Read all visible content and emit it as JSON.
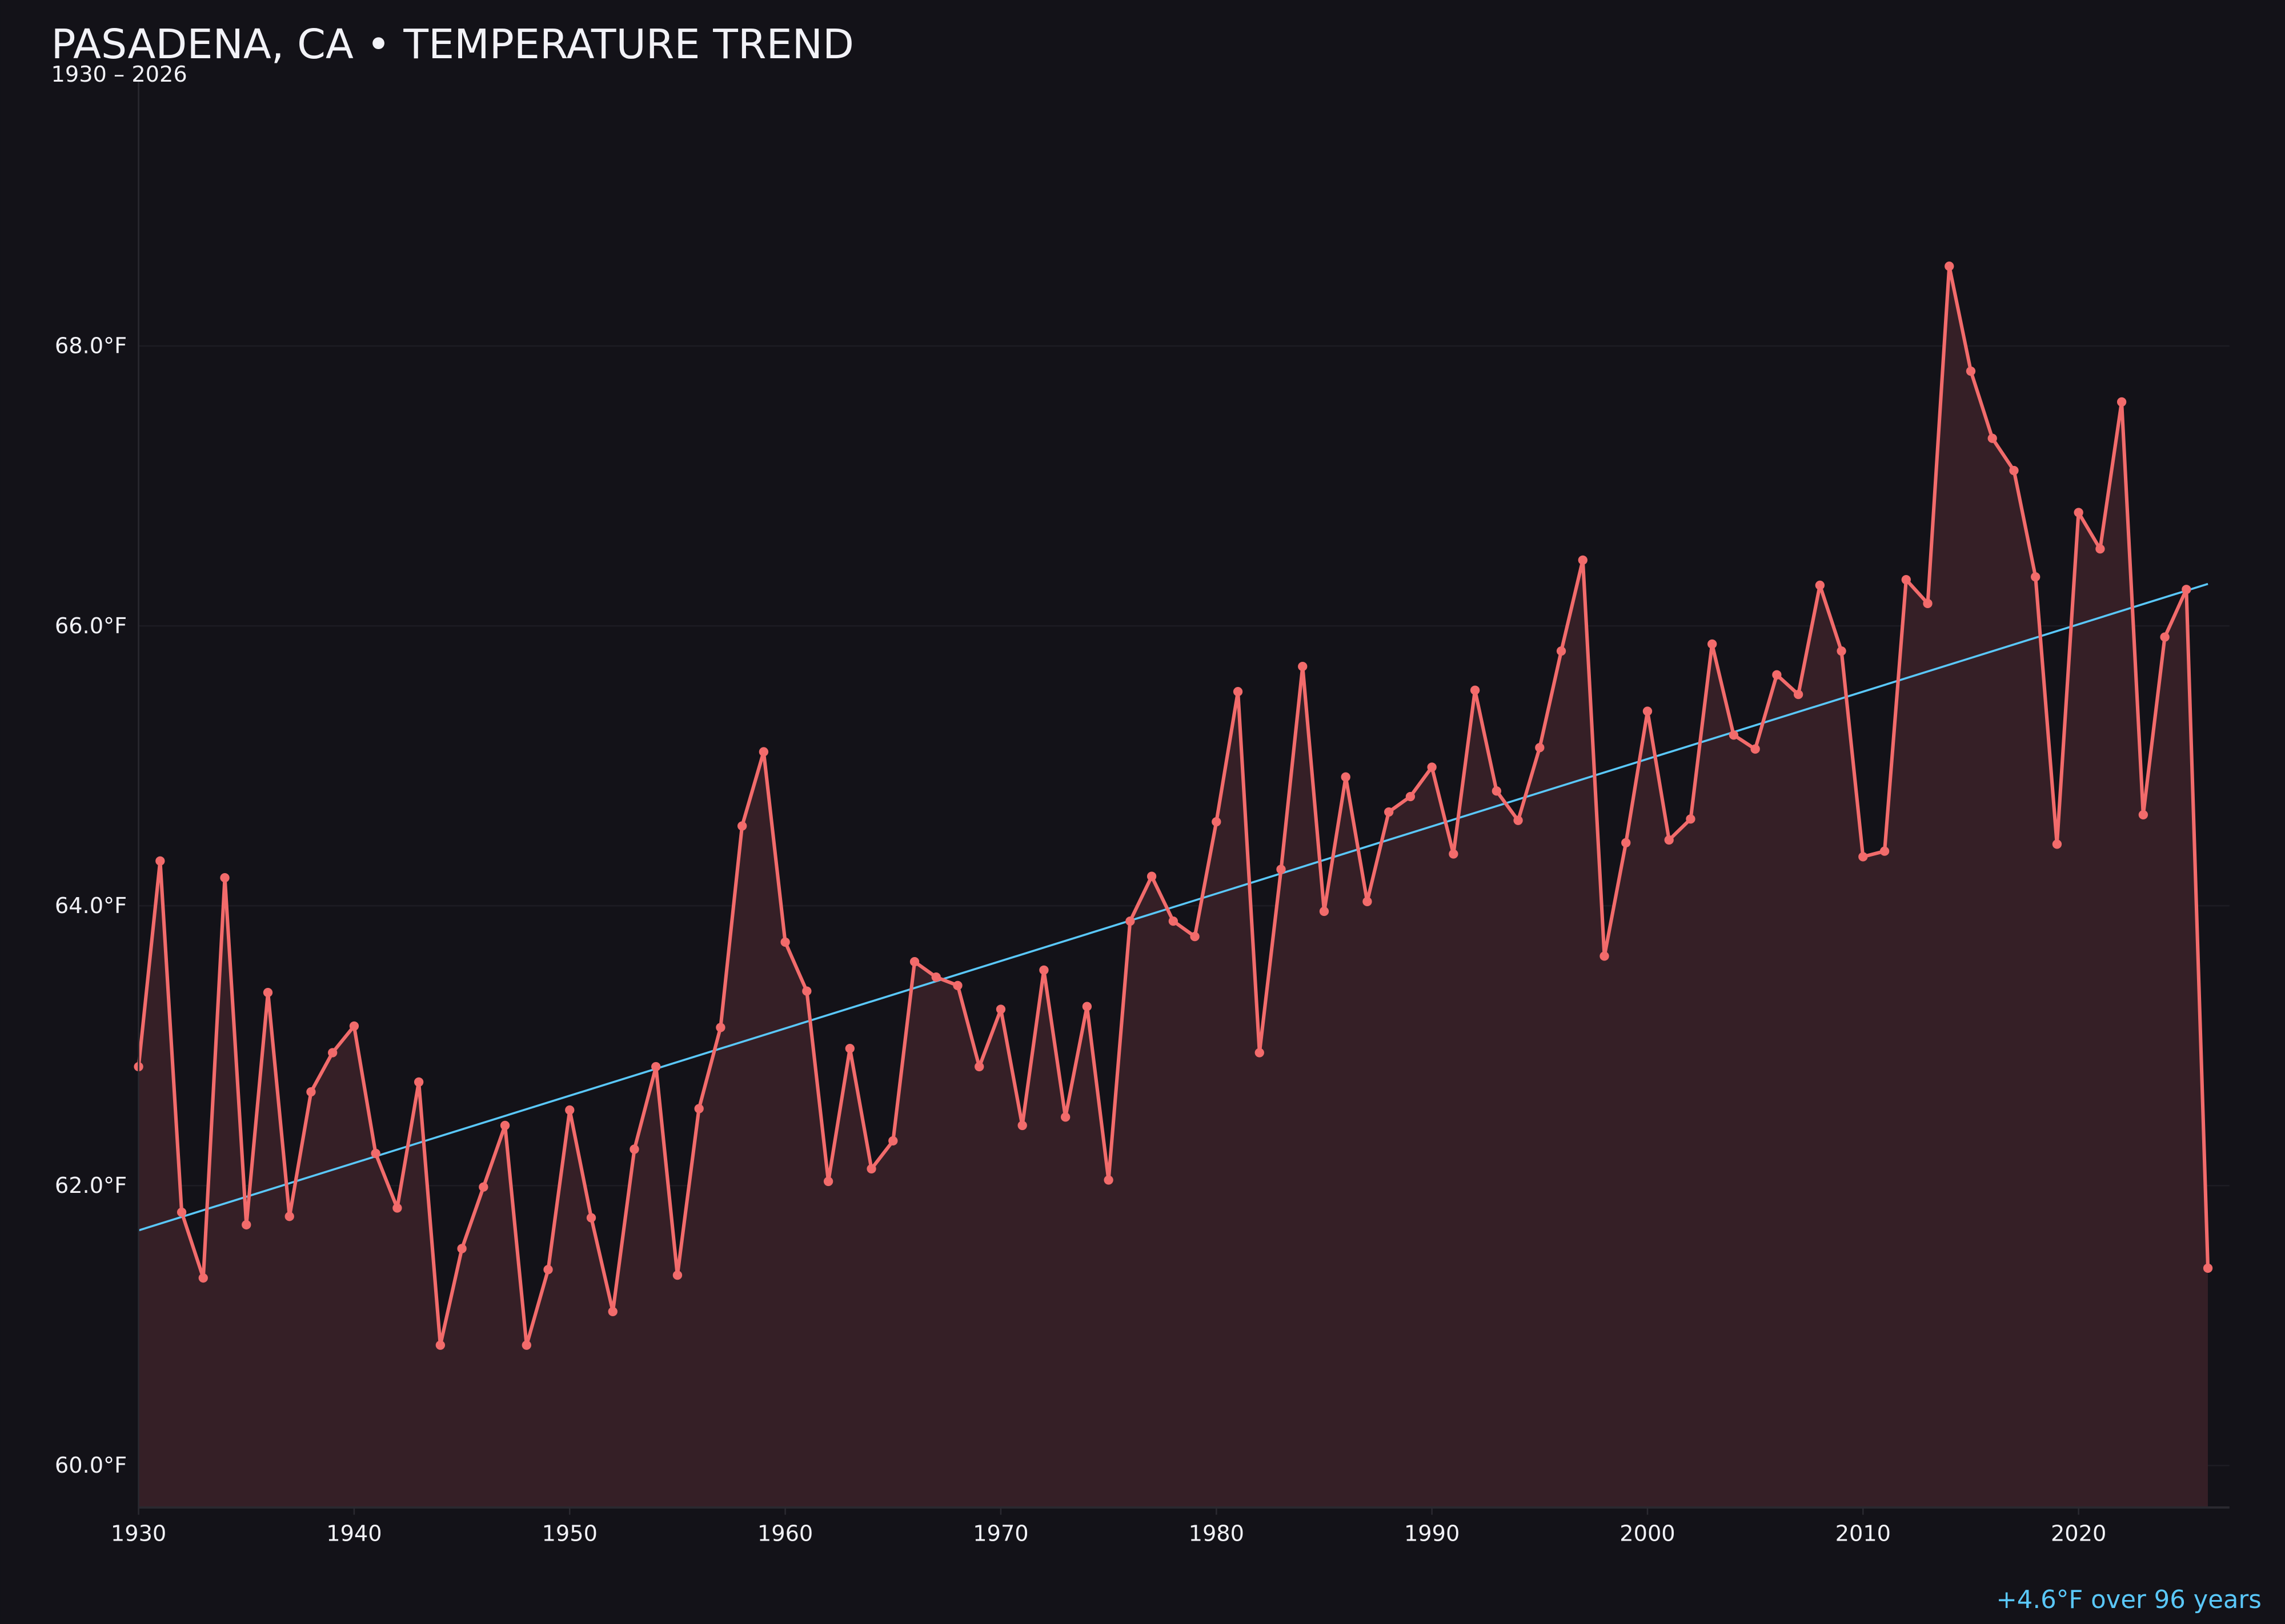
{
  "title": "PASADENA, CA • TEMPERATURE TREND",
  "subtitle": "1930 – 2026",
  "annotation": "+4.6°F over 96 years",
  "colors": {
    "background": "#131218",
    "series_line": "#f26b6b",
    "series_fill": "#351f26",
    "trend_line": "#5ac8fa",
    "grid": "#1d1c23",
    "text": "#f2f2f7",
    "annotation": "#5ac8fa"
  },
  "chart_data": {
    "type": "line",
    "title": "PASADENA, CA • TEMPERATURE TREND",
    "subtitle": "1930 – 2026",
    "xlabel": "",
    "ylabel": "",
    "xlim": [
      1930,
      2027
    ],
    "ylim": [
      59.7,
      69.9
    ],
    "grid": "horizontal",
    "area_fill": true,
    "markers": true,
    "x_ticks": [
      1930,
      1940,
      1950,
      1960,
      1970,
      1980,
      1990,
      2000,
      2010,
      2020
    ],
    "x_tick_labels": [
      "1930",
      "1940",
      "1950",
      "1960",
      "1970",
      "1980",
      "1990",
      "2000",
      "2010",
      "2020"
    ],
    "y_ticks": [
      60,
      62,
      64,
      66,
      68
    ],
    "y_tick_labels": [
      "60.0°F",
      "62.0°F",
      "64.0°F",
      "66.0°F",
      "68.0°F"
    ],
    "x": [
      1930,
      1931,
      1932,
      1933,
      1934,
      1935,
      1936,
      1937,
      1938,
      1939,
      1940,
      1941,
      1942,
      1943,
      1944,
      1945,
      1946,
      1947,
      1948,
      1949,
      1950,
      1951,
      1952,
      1953,
      1954,
      1955,
      1956,
      1957,
      1958,
      1959,
      1960,
      1961,
      1962,
      1963,
      1964,
      1965,
      1966,
      1967,
      1968,
      1969,
      1970,
      1971,
      1972,
      1973,
      1974,
      1975,
      1976,
      1977,
      1978,
      1979,
      1980,
      1981,
      1982,
      1983,
      1984,
      1985,
      1986,
      1987,
      1988,
      1989,
      1990,
      1991,
      1992,
      1993,
      1994,
      1995,
      1996,
      1997,
      1998,
      1999,
      2000,
      2001,
      2002,
      2003,
      2004,
      2005,
      2006,
      2007,
      2008,
      2009,
      2010,
      2011,
      2012,
      2013,
      2014,
      2015,
      2016,
      2017,
      2018,
      2019,
      2020,
      2021,
      2022,
      2023,
      2024,
      2025,
      2026
    ],
    "series": [
      {
        "values": [
          62.85,
          64.32,
          61.81,
          61.34,
          64.2,
          61.72,
          63.38,
          61.78,
          62.67,
          62.95,
          63.14,
          62.23,
          61.84,
          62.74,
          60.86,
          61.55,
          61.99,
          62.43,
          60.86,
          61.4,
          62.54,
          61.77,
          61.1,
          62.26,
          62.85,
          61.36,
          62.55,
          63.13,
          64.57,
          65.1,
          63.74,
          63.39,
          62.03,
          62.98,
          62.12,
          62.32,
          63.6,
          63.49,
          63.43,
          62.85,
          63.26,
          62.43,
          63.54,
          62.49,
          63.28,
          62.04,
          63.89,
          64.21,
          63.89,
          63.78,
          64.6,
          65.53,
          62.95,
          64.26,
          65.71,
          63.96,
          64.92,
          64.03,
          64.67,
          64.78,
          64.99,
          64.37,
          65.54,
          64.82,
          64.61,
          65.13,
          65.82,
          66.47,
          63.64,
          64.45,
          65.39,
          64.47,
          64.62,
          65.87,
          65.22,
          65.12,
          65.65,
          65.51,
          66.29,
          65.82,
          64.35,
          64.39,
          66.33,
          66.16,
          68.57,
          67.82,
          67.34,
          67.11,
          66.35,
          64.44,
          66.81,
          66.55,
          67.6,
          64.65,
          65.92,
          66.26,
          61.41
        ]
      }
    ],
    "trend": {
      "x": [
        1930,
        2026
      ],
      "y": [
        61.68,
        66.3
      ]
    }
  }
}
